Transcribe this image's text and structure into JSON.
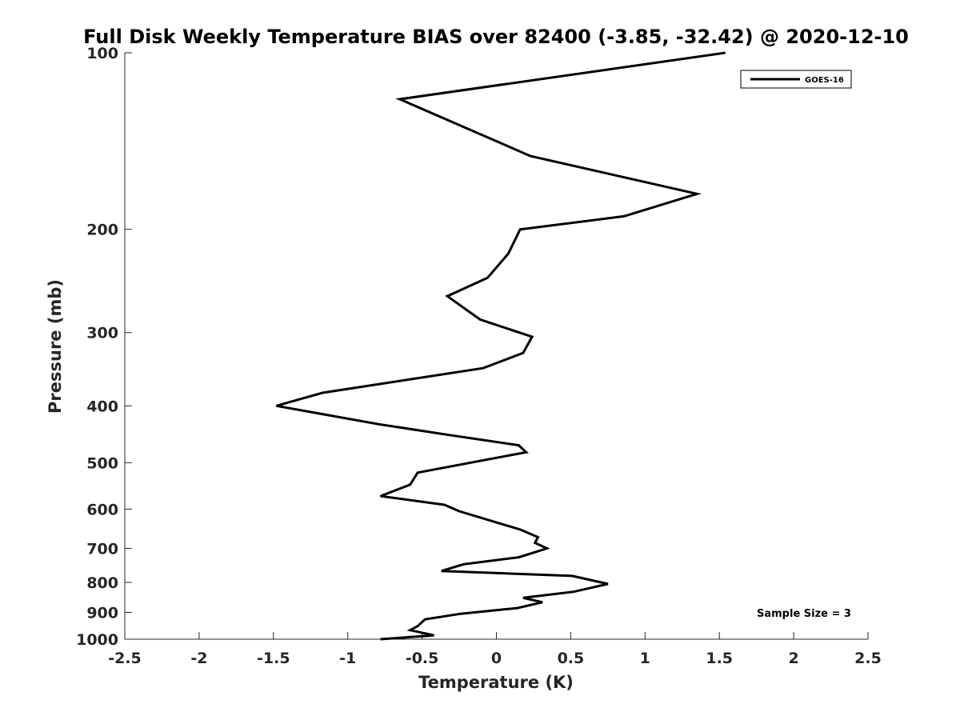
{
  "chart_data": {
    "type": "line",
    "title": "Full Disk Weekly Temperature BIAS over 82400 (-3.85, -32.42) @ 2020-12-10",
    "xlabel": "Temperature (K)",
    "ylabel": "Pressure (mb)",
    "xlim": [
      -2.5,
      2.5
    ],
    "ylim": [
      1000,
      100
    ],
    "y_scale": "log",
    "y_reversed": true,
    "grid": false,
    "x_ticks": [
      -2.5,
      -2,
      -1.5,
      -1,
      -0.5,
      0,
      0.5,
      1,
      1.5,
      2,
      2.5
    ],
    "x_tick_labels": [
      "-2.5",
      "-2",
      "-1.5",
      "-1",
      "-0.5",
      "0",
      "0.5",
      "1",
      "1.5",
      "2",
      "2.5"
    ],
    "y_ticks": [
      100,
      200,
      300,
      400,
      500,
      600,
      700,
      800,
      900,
      1000
    ],
    "y_tick_labels": [
      "100",
      "200",
      "300",
      "400",
      "500",
      "600",
      "700",
      "800",
      "900",
      "1000"
    ],
    "legend_position": "top-right",
    "series": [
      {
        "name": "GOES-16",
        "color": "#000000",
        "points": [
          [
            1.54,
            100
          ],
          [
            -0.65,
            120
          ],
          [
            0.23,
            150
          ],
          [
            1.35,
            174
          ],
          [
            0.86,
            190
          ],
          [
            0.16,
            200
          ],
          [
            0.08,
            220
          ],
          [
            -0.06,
            242
          ],
          [
            -0.33,
            260
          ],
          [
            -0.11,
            285
          ],
          [
            0.24,
            305
          ],
          [
            0.18,
            325
          ],
          [
            -0.09,
            345
          ],
          [
            -1.17,
            380
          ],
          [
            -1.48,
            400
          ],
          [
            -0.79,
            430
          ],
          [
            -0.28,
            450
          ],
          [
            0.15,
            467
          ],
          [
            0.2,
            480
          ],
          [
            -0.53,
            520
          ],
          [
            -0.58,
            545
          ],
          [
            -0.78,
            570
          ],
          [
            -0.35,
            590
          ],
          [
            -0.25,
            605
          ],
          [
            0.16,
            650
          ],
          [
            0.28,
            670
          ],
          [
            0.26,
            685
          ],
          [
            0.34,
            700
          ],
          [
            0.15,
            725
          ],
          [
            -0.22,
            745
          ],
          [
            -0.37,
            765
          ],
          [
            0.51,
            780
          ],
          [
            0.75,
            805
          ],
          [
            0.52,
            830
          ],
          [
            0.18,
            850
          ],
          [
            0.31,
            865
          ],
          [
            0.14,
            885
          ],
          [
            -0.24,
            905
          ],
          [
            -0.48,
            925
          ],
          [
            -0.53,
            950
          ],
          [
            -0.58,
            965
          ],
          [
            -0.42,
            985
          ],
          [
            -0.78,
            1000
          ]
        ]
      }
    ],
    "annotations": [
      "Sample Size = 3"
    ]
  }
}
